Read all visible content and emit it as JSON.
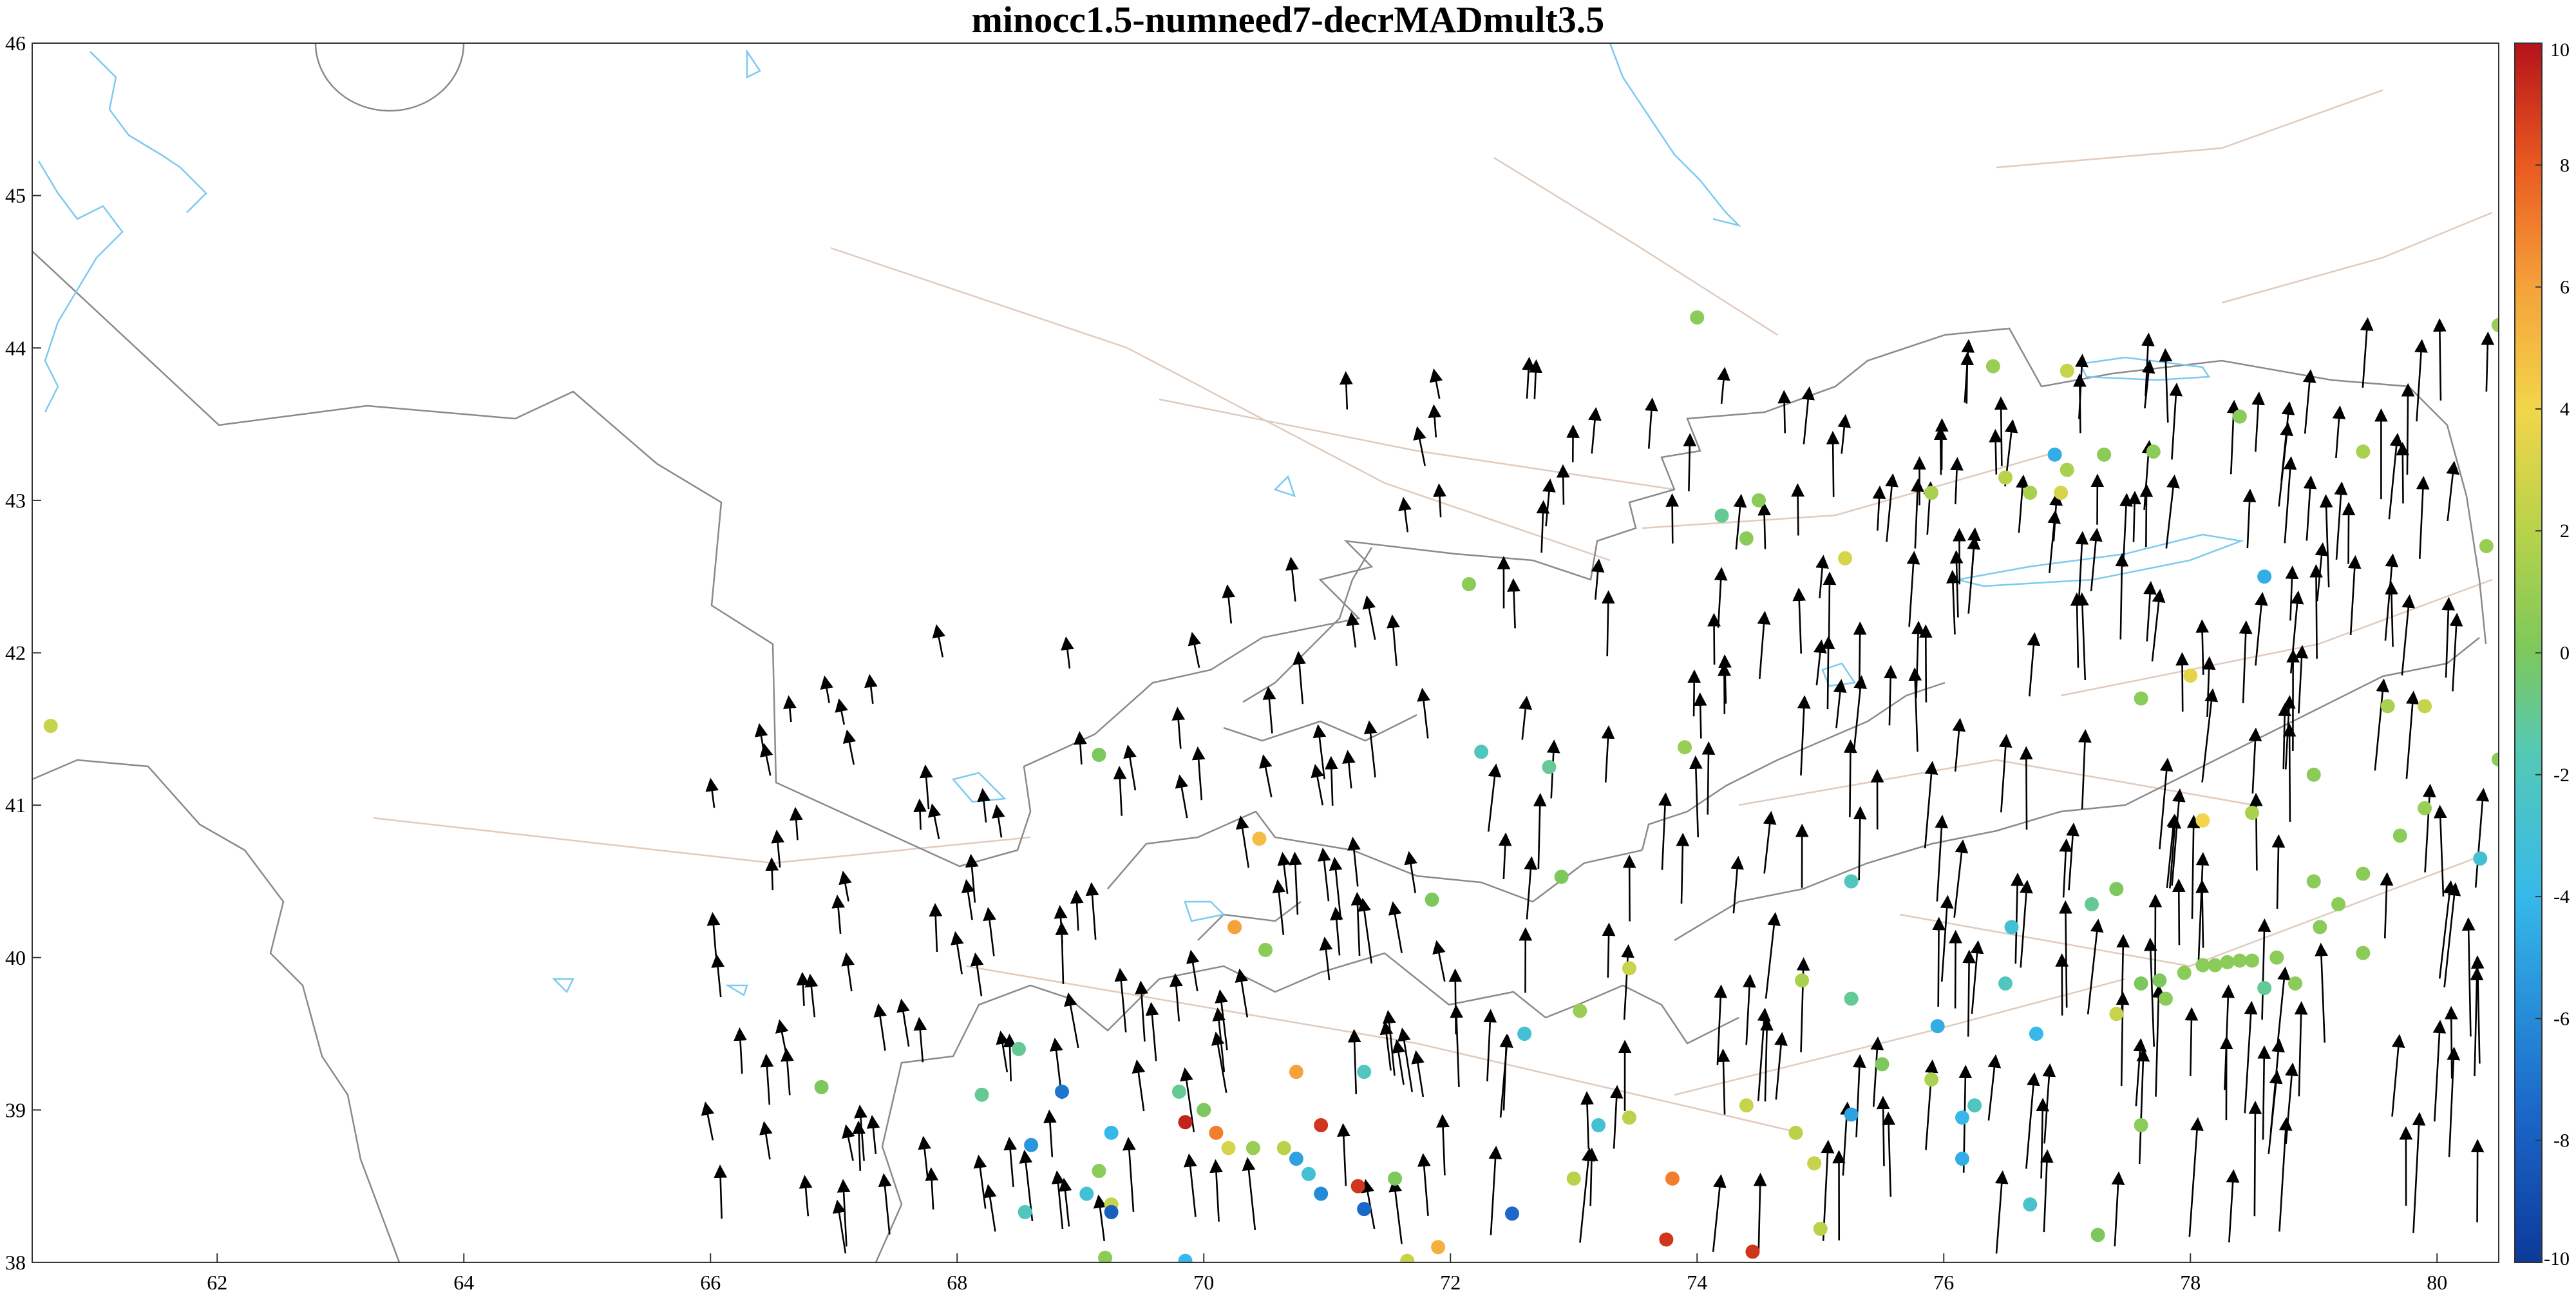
{
  "title": "minocc1.5-numneed7-decrMADmult3.5",
  "axes": {
    "x_range": [
      60.5,
      80.5
    ],
    "y_range": [
      38,
      46
    ],
    "x_ticks": [
      "62",
      "64",
      "66",
      "68",
      "70",
      "72",
      "74",
      "76",
      "78",
      "80"
    ],
    "y_ticks": [
      "38",
      "39",
      "40",
      "41",
      "42",
      "43",
      "44",
      "45",
      "46"
    ]
  },
  "colorbar": {
    "range": [
      -10,
      10
    ],
    "ticks": [
      "10",
      "8",
      "6",
      "4",
      "2",
      "0",
      "-2",
      "-4",
      "-6",
      "-8",
      "-10"
    ],
    "colormap": "jet"
  },
  "colors": {
    "border": "#808080",
    "water": "#6ec6f0",
    "fault": "#d8c0b0",
    "vector": "#000000"
  },
  "chart_data": {
    "type": "scatter",
    "description_free": true,
    "stations": [
      {
        "lon": 60.65,
        "lat": 41.52,
        "v": 2.5
      },
      {
        "lon": 74.0,
        "lat": 44.2,
        "v": 0.5
      },
      {
        "lon": 76.4,
        "lat": 43.88,
        "v": 1.0
      },
      {
        "lon": 77.0,
        "lat": 43.85,
        "v": 2.5
      },
      {
        "lon": 80.5,
        "lat": 44.15,
        "v": 1.0
      },
      {
        "lon": 76.9,
        "lat": 43.3,
        "v": -4.5
      },
      {
        "lon": 77.3,
        "lat": 43.3,
        "v": 0.5
      },
      {
        "lon": 77.7,
        "lat": 43.32,
        "v": 0.5
      },
      {
        "lon": 78.4,
        "lat": 43.55,
        "v": 0.5
      },
      {
        "lon": 79.4,
        "lat": 43.32,
        "v": 1.5
      },
      {
        "lon": 76.5,
        "lat": 43.15,
        "v": 2.0
      },
      {
        "lon": 75.9,
        "lat": 43.05,
        "v": 1.5
      },
      {
        "lon": 76.7,
        "lat": 43.05,
        "v": 1.5
      },
      {
        "lon": 77.0,
        "lat": 43.2,
        "v": 1.5
      },
      {
        "lon": 76.95,
        "lat": 43.05,
        "v": 3.0
      },
      {
        "lon": 74.5,
        "lat": 43.0,
        "v": 0.5
      },
      {
        "lon": 74.2,
        "lat": 42.9,
        "v": -1.0
      },
      {
        "lon": 74.4,
        "lat": 42.75,
        "v": 0.5
      },
      {
        "lon": 75.2,
        "lat": 42.62,
        "v": 3.0
      },
      {
        "lon": 72.15,
        "lat": 42.45,
        "v": 0.5
      },
      {
        "lon": 80.4,
        "lat": 42.7,
        "v": 1.0
      },
      {
        "lon": 78.6,
        "lat": 42.5,
        "v": -4.5
      },
      {
        "lon": 78.0,
        "lat": 41.85,
        "v": 3.5
      },
      {
        "lon": 77.6,
        "lat": 41.7,
        "v": 0.5
      },
      {
        "lon": 79.6,
        "lat": 41.65,
        "v": 1.5
      },
      {
        "lon": 79.9,
        "lat": 41.65,
        "v": 2.5
      },
      {
        "lon": 69.15,
        "lat": 41.33,
        "v": 0.0
      },
      {
        "lon": 72.25,
        "lat": 41.35,
        "v": -2.0
      },
      {
        "lon": 72.8,
        "lat": 41.25,
        "v": -1.0
      },
      {
        "lon": 73.9,
        "lat": 41.38,
        "v": 1.0
      },
      {
        "lon": 80.5,
        "lat": 41.3,
        "v": 0.5
      },
      {
        "lon": 79.0,
        "lat": 41.2,
        "v": 0.5
      },
      {
        "lon": 78.1,
        "lat": 40.9,
        "v": 4.0
      },
      {
        "lon": 78.5,
        "lat": 40.95,
        "v": 1.5
      },
      {
        "lon": 79.9,
        "lat": 40.98,
        "v": 1.0
      },
      {
        "lon": 79.7,
        "lat": 40.8,
        "v": 0.5
      },
      {
        "lon": 80.35,
        "lat": 40.65,
        "v": -3.0
      },
      {
        "lon": 70.45,
        "lat": 40.78,
        "v": 5.0
      },
      {
        "lon": 71.85,
        "lat": 40.38,
        "v": 0.0
      },
      {
        "lon": 72.9,
        "lat": 40.53,
        "v": 0.0
      },
      {
        "lon": 75.25,
        "lat": 40.5,
        "v": -2.0
      },
      {
        "lon": 77.2,
        "lat": 40.35,
        "v": -1.0
      },
      {
        "lon": 77.4,
        "lat": 40.45,
        "v": 0.0
      },
      {
        "lon": 79.0,
        "lat": 40.5,
        "v": 0.5
      },
      {
        "lon": 79.2,
        "lat": 40.35,
        "v": 0.5
      },
      {
        "lon": 79.4,
        "lat": 40.55,
        "v": 0.5
      },
      {
        "lon": 70.25,
        "lat": 40.2,
        "v": 6.0
      },
      {
        "lon": 70.5,
        "lat": 40.05,
        "v": 0.5
      },
      {
        "lon": 76.55,
        "lat": 40.2,
        "v": -3.0
      },
      {
        "lon": 77.6,
        "lat": 39.83,
        "v": 0.0
      },
      {
        "lon": 77.75,
        "lat": 39.85,
        "v": 0.0
      },
      {
        "lon": 77.95,
        "lat": 39.9,
        "v": 0.5
      },
      {
        "lon": 78.1,
        "lat": 39.95,
        "v": 0.5
      },
      {
        "lon": 78.2,
        "lat": 39.95,
        "v": 0.5
      },
      {
        "lon": 78.3,
        "lat": 39.97,
        "v": 0.5
      },
      {
        "lon": 78.4,
        "lat": 39.98,
        "v": 0.5
      },
      {
        "lon": 78.5,
        "lat": 39.98,
        "v": 0.5
      },
      {
        "lon": 78.7,
        "lat": 40.0,
        "v": 0.5
      },
      {
        "lon": 79.05,
        "lat": 40.2,
        "v": 0.5
      },
      {
        "lon": 79.4,
        "lat": 40.03,
        "v": 0.5
      },
      {
        "lon": 73.45,
        "lat": 39.93,
        "v": 2.5
      },
      {
        "lon": 74.85,
        "lat": 39.85,
        "v": 1.5
      },
      {
        "lon": 75.25,
        "lat": 39.73,
        "v": -1.0
      },
      {
        "lon": 76.5,
        "lat": 39.83,
        "v": -2.0
      },
      {
        "lon": 77.8,
        "lat": 39.73,
        "v": 0.5
      },
      {
        "lon": 78.6,
        "lat": 39.8,
        "v": -1.0
      },
      {
        "lon": 78.85,
        "lat": 39.83,
        "v": 0.5
      },
      {
        "lon": 73.05,
        "lat": 39.65,
        "v": 1.0
      },
      {
        "lon": 77.4,
        "lat": 39.63,
        "v": 2.5
      },
      {
        "lon": 72.6,
        "lat": 39.5,
        "v": -3.0
      },
      {
        "lon": 75.95,
        "lat": 39.55,
        "v": -4.5
      },
      {
        "lon": 76.75,
        "lat": 39.5,
        "v": -4.0
      },
      {
        "lon": 75.5,
        "lat": 39.3,
        "v": 0.0
      },
      {
        "lon": 75.9,
        "lat": 39.2,
        "v": 1.5
      },
      {
        "lon": 68.5,
        "lat": 39.4,
        "v": -1.0
      },
      {
        "lon": 71.3,
        "lat": 39.25,
        "v": -2.0
      },
      {
        "lon": 70.75,
        "lat": 39.25,
        "v": 6.0
      },
      {
        "lon": 66.9,
        "lat": 39.15,
        "v": 0.0
      },
      {
        "lon": 68.2,
        "lat": 39.1,
        "v": -1.0
      },
      {
        "lon": 68.85,
        "lat": 39.12,
        "v": -7.0
      },
      {
        "lon": 69.8,
        "lat": 39.12,
        "v": -1.0
      },
      {
        "lon": 70.0,
        "lat": 39.0,
        "v": 0.0
      },
      {
        "lon": 70.95,
        "lat": 38.9,
        "v": 9.0
      },
      {
        "lon": 73.45,
        "lat": 38.95,
        "v": 2.0
      },
      {
        "lon": 74.4,
        "lat": 39.03,
        "v": 2.5
      },
      {
        "lon": 75.25,
        "lat": 38.97,
        "v": -5.0
      },
      {
        "lon": 76.15,
        "lat": 38.95,
        "v": -4.0
      },
      {
        "lon": 76.25,
        "lat": 39.03,
        "v": -2.0
      },
      {
        "lon": 77.6,
        "lat": 38.9,
        "v": 0.5
      },
      {
        "lon": 73.2,
        "lat": 38.9,
        "v": -3.0
      },
      {
        "lon": 74.8,
        "lat": 38.85,
        "v": 2.0
      },
      {
        "lon": 69.85,
        "lat": 38.92,
        "v": 9.5
      },
      {
        "lon": 70.1,
        "lat": 38.85,
        "v": 7.0
      },
      {
        "lon": 69.25,
        "lat": 38.85,
        "v": -4.0
      },
      {
        "lon": 68.6,
        "lat": 38.77,
        "v": -5.5
      },
      {
        "lon": 70.2,
        "lat": 38.75,
        "v": 3.0
      },
      {
        "lon": 70.4,
        "lat": 38.75,
        "v": 1.0
      },
      {
        "lon": 70.65,
        "lat": 38.75,
        "v": 2.0
      },
      {
        "lon": 70.75,
        "lat": 38.68,
        "v": -5.0
      },
      {
        "lon": 74.95,
        "lat": 38.65,
        "v": 2.5
      },
      {
        "lon": 76.15,
        "lat": 38.68,
        "v": -4.5
      },
      {
        "lon": 69.15,
        "lat": 38.6,
        "v": 0.5
      },
      {
        "lon": 70.85,
        "lat": 38.58,
        "v": -3.0
      },
      {
        "lon": 73.0,
        "lat": 38.55,
        "v": 2.0
      },
      {
        "lon": 73.8,
        "lat": 38.55,
        "v": 7.0
      },
      {
        "lon": 71.55,
        "lat": 38.55,
        "v": 0.0
      },
      {
        "lon": 70.95,
        "lat": 38.45,
        "v": -6.0
      },
      {
        "lon": 71.25,
        "lat": 38.5,
        "v": 9.0
      },
      {
        "lon": 69.05,
        "lat": 38.45,
        "v": -3.0
      },
      {
        "lon": 69.25,
        "lat": 38.38,
        "v": 2.5
      },
      {
        "lon": 69.25,
        "lat": 38.33,
        "v": -8.0
      },
      {
        "lon": 68.55,
        "lat": 38.33,
        "v": -2.0
      },
      {
        "lon": 71.3,
        "lat": 38.35,
        "v": -7.5
      },
      {
        "lon": 72.5,
        "lat": 38.32,
        "v": -7.5
      },
      {
        "lon": 76.7,
        "lat": 38.38,
        "v": -2.5
      },
      {
        "lon": 75.0,
        "lat": 38.22,
        "v": 2.0
      },
      {
        "lon": 77.25,
        "lat": 38.18,
        "v": 0.0
      },
      {
        "lon": 73.75,
        "lat": 38.15,
        "v": 9.0
      },
      {
        "lon": 71.9,
        "lat": 38.1,
        "v": 5.5
      },
      {
        "lon": 74.45,
        "lat": 38.07,
        "v": 9.0
      },
      {
        "lon": 69.2,
        "lat": 38.03,
        "v": 0.5
      },
      {
        "lon": 69.85,
        "lat": 38.01,
        "v": -4.0
      },
      {
        "lon": 71.65,
        "lat": 38.01,
        "v": 2.5
      }
    ]
  }
}
